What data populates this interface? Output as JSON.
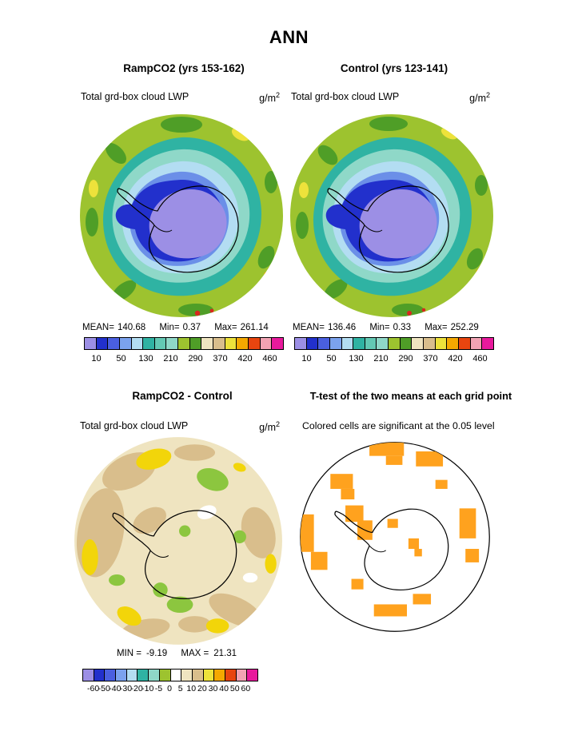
{
  "title": "ANN",
  "panels": {
    "ramp": {
      "header": "RampCO2 (yrs 153-162)",
      "subtitle": "Total grd-box cloud LWP",
      "units": "g/m",
      "units_exp": "2",
      "stats": {
        "mean_label": "MEAN=",
        "mean": "140.68",
        "min_label": "Min=",
        "min": "0.37",
        "max_label": "Max=",
        "max": "261.14"
      },
      "colorbar": {
        "colors": [
          "#9C8FE5",
          "#2230CC",
          "#4A5FE0",
          "#7BA2EE",
          "#B3DDF2",
          "#2FB3A3",
          "#63C9B4",
          "#8FD8C8",
          "#9DC32F",
          "#4F9E27",
          "#EFE4C0",
          "#D9BE8C",
          "#EDE23B",
          "#F5A800",
          "#E8450F",
          "#F2A3B3",
          "#E8199C"
        ],
        "ticks": [
          "10",
          "50",
          "130",
          "210",
          "290",
          "370",
          "420",
          "460"
        ]
      }
    },
    "control": {
      "header": "Control (yrs 123-141)",
      "subtitle": "Total grd-box cloud LWP",
      "units": "g/m",
      "units_exp": "2",
      "stats": {
        "mean_label": "MEAN=",
        "mean": "136.46",
        "min_label": "Min=",
        "min": "0.33",
        "max_label": "Max=",
        "max": "252.29"
      },
      "colorbar": {
        "colors": [
          "#9C8FE5",
          "#2230CC",
          "#4A5FE0",
          "#7BA2EE",
          "#B3DDF2",
          "#2FB3A3",
          "#63C9B4",
          "#8FD8C8",
          "#9DC32F",
          "#4F9E27",
          "#EFE4C0",
          "#D9BE8C",
          "#EDE23B",
          "#F5A800",
          "#E8450F",
          "#F2A3B3",
          "#E8199C"
        ],
        "ticks": [
          "10",
          "50",
          "130",
          "210",
          "290",
          "370",
          "420",
          "460"
        ]
      }
    },
    "diff": {
      "header": "RampCO2 - Control",
      "subtitle": "Total grd-box cloud LWP",
      "units": "g/m",
      "units_exp": "2",
      "stats": {
        "min_label": "MIN =",
        "min": "-9.19",
        "max_label": "MAX =",
        "max": "21.31"
      },
      "colorbar": {
        "colors": [
          "#9C8FE5",
          "#2230CC",
          "#4A5FE0",
          "#7BA2EE",
          "#B3DDF2",
          "#2FB3A3",
          "#8FD8C8",
          "#9DC32F",
          "#FFFFFF",
          "#EFE4C0",
          "#D9BE8C",
          "#EDE23B",
          "#F5A800",
          "#E8450F",
          "#F2A3B3",
          "#E8199C"
        ],
        "ticks": [
          "-60",
          "-50",
          "-40",
          "-30",
          "-20",
          "-10",
          "-5",
          "0",
          "5",
          "10",
          "20",
          "30",
          "40",
          "50",
          "60"
        ]
      }
    },
    "ttest": {
      "header": "T-test of the two means at each grid point",
      "subtitle": "Colored cells are significant at the 0.05 level"
    }
  },
  "chart_data": [
    {
      "type": "heatmap",
      "panel": "RampCO2 (yrs 153-162)",
      "variable": "Total grd-box cloud LWP",
      "units": "g/m^2",
      "projection": "south-polar-stereographic",
      "stats": {
        "mean": 140.68,
        "min": 0.37,
        "max": 261.14
      },
      "contour_ticks": [
        10,
        50,
        130,
        210,
        290,
        370,
        420,
        460
      ],
      "palette": [
        "#9C8FE5",
        "#2230CC",
        "#4A5FE0",
        "#7BA2EE",
        "#B3DDF2",
        "#2FB3A3",
        "#63C9B4",
        "#8FD8C8",
        "#9DC32F",
        "#4F9E27",
        "#EFE4C0",
        "#D9BE8C",
        "#EDE23B",
        "#F5A800",
        "#E8450F",
        "#F2A3B3",
        "#E8199C"
      ],
      "legend_position": "bottom"
    },
    {
      "type": "heatmap",
      "panel": "Control (yrs 123-141)",
      "variable": "Total grd-box cloud LWP",
      "units": "g/m^2",
      "projection": "south-polar-stereographic",
      "stats": {
        "mean": 136.46,
        "min": 0.33,
        "max": 252.29
      },
      "contour_ticks": [
        10,
        50,
        130,
        210,
        290,
        370,
        420,
        460
      ],
      "palette": [
        "#9C8FE5",
        "#2230CC",
        "#4A5FE0",
        "#7BA2EE",
        "#B3DDF2",
        "#2FB3A3",
        "#63C9B4",
        "#8FD8C8",
        "#9DC32F",
        "#4F9E27",
        "#EFE4C0",
        "#D9BE8C",
        "#EDE23B",
        "#F5A800",
        "#E8450F",
        "#F2A3B3",
        "#E8199C"
      ],
      "legend_position": "bottom"
    },
    {
      "type": "heatmap",
      "panel": "RampCO2 - Control",
      "variable": "Total grd-box cloud LWP difference",
      "units": "g/m^2",
      "projection": "south-polar-stereographic",
      "stats": {
        "min": -9.19,
        "max": 21.31
      },
      "contour_ticks": [
        -60,
        -50,
        -40,
        -30,
        -20,
        -10,
        -5,
        0,
        5,
        10,
        20,
        30,
        40,
        50,
        60
      ],
      "palette": [
        "#9C8FE5",
        "#2230CC",
        "#4A5FE0",
        "#7BA2EE",
        "#B3DDF2",
        "#2FB3A3",
        "#8FD8C8",
        "#9DC32F",
        "#FFFFFF",
        "#EFE4C0",
        "#D9BE8C",
        "#EDE23B",
        "#F5A800",
        "#E8450F",
        "#F2A3B3",
        "#E8199C"
      ],
      "legend_position": "bottom"
    },
    {
      "type": "map",
      "panel": "T-test of the two means at each grid point",
      "note": "Colored cells are significant at the 0.05 level",
      "significance_level": 0.05,
      "significant_color": "#FFA21E"
    }
  ]
}
